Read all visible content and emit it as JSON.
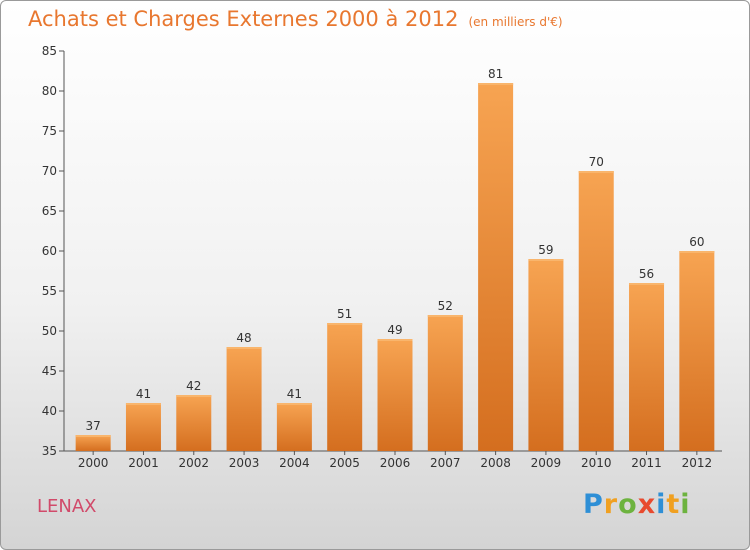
{
  "title": "Achats et Charges Externes 2000 à 2012",
  "unit": "(en milliers d'€)",
  "place": "LENAX",
  "logo": {
    "text": "Proxiti",
    "letters": [
      {
        "char": "P",
        "color": "#2e8fd6"
      },
      {
        "char": "r",
        "color": "#f0a020"
      },
      {
        "char": "o",
        "color": "#6db33f"
      },
      {
        "char": "x",
        "color": "#e84a2e"
      },
      {
        "char": "i",
        "color": "#2e8fd6"
      },
      {
        "char": "t",
        "color": "#f0a020"
      },
      {
        "char": "i",
        "color": "#6db33f"
      }
    ]
  },
  "colors": {
    "accent": "#e8772f",
    "bar_top": "#f7a452",
    "bar_bottom": "#d46e1f",
    "place": "#d14a6a"
  },
  "chart_data": {
    "type": "bar",
    "title": "Achats et Charges Externes 2000 à 2012",
    "subtitle": "(en milliers d'€)",
    "categories": [
      "2000",
      "2001",
      "2002",
      "2003",
      "2004",
      "2005",
      "2006",
      "2007",
      "2008",
      "2009",
      "2010",
      "2011",
      "2012"
    ],
    "values": [
      37,
      41,
      42,
      48,
      41,
      51,
      49,
      52,
      81,
      59,
      70,
      56,
      60
    ],
    "ylim": [
      35,
      85
    ],
    "yticks": [
      35,
      40,
      45,
      50,
      55,
      60,
      65,
      70,
      75,
      80,
      85
    ],
    "grid": false,
    "xlabel": "",
    "ylabel": ""
  }
}
